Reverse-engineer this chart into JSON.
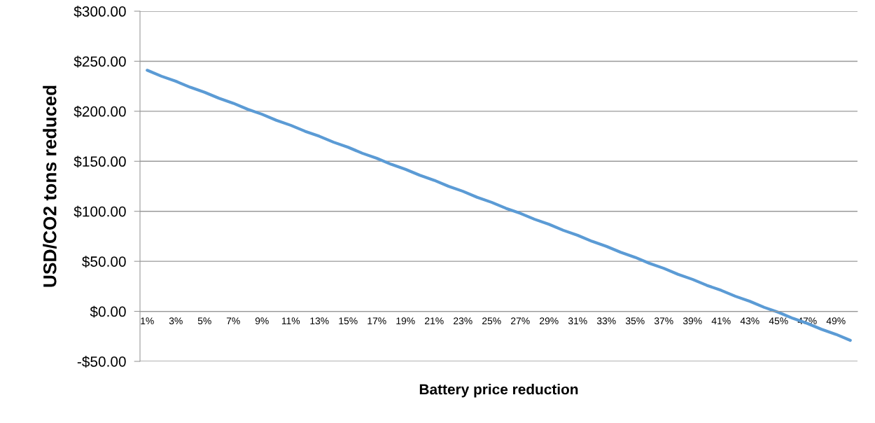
{
  "chart_data": {
    "type": "line",
    "xlabel": "Battery price reduction",
    "ylabel": "USD/CO2 tons reduced",
    "categories": [
      "1%",
      null,
      "3%",
      null,
      "5%",
      null,
      "7%",
      null,
      "9%",
      null,
      "11%",
      null,
      "13%",
      null,
      "15%",
      null,
      "17%",
      null,
      "19%",
      null,
      "21%",
      null,
      "23%",
      null,
      "25%",
      null,
      "27%",
      null,
      "29%",
      null,
      "31%",
      null,
      "33%",
      null,
      "35%",
      null,
      "37%",
      null,
      "39%",
      null,
      "41%",
      null,
      "43%",
      null,
      "45%",
      null,
      "47%",
      null,
      "49%",
      null
    ],
    "series": [
      {
        "color": "#5b9bd5",
        "values": [
          241,
          235,
          230,
          224,
          219,
          213,
          208,
          202,
          197,
          191,
          186,
          180,
          175,
          169,
          164,
          158,
          153,
          147,
          142,
          136,
          131,
          125,
          120,
          114,
          109,
          103,
          98,
          92,
          87,
          81,
          76,
          70,
          65,
          59,
          54,
          48,
          43,
          37,
          32,
          26,
          21,
          15,
          10,
          4,
          -1,
          -7,
          -12,
          -18,
          -23,
          -29
        ]
      }
    ],
    "ylim": [
      -50,
      300
    ],
    "yticks": [
      {
        "value": -50,
        "label": "-$50.00"
      },
      {
        "value": 0,
        "label": "$0.00"
      },
      {
        "value": 50,
        "label": "$50.00"
      },
      {
        "value": 100,
        "label": "$100.00"
      },
      {
        "value": 150,
        "label": "$150.00"
      },
      {
        "value": 200,
        "label": "$200.00"
      },
      {
        "value": 250,
        "label": "$250.00"
      },
      {
        "value": 300,
        "label": "$300.00"
      }
    ],
    "grid": "y",
    "legend": false,
    "marker": "none",
    "line_style": "solid"
  }
}
